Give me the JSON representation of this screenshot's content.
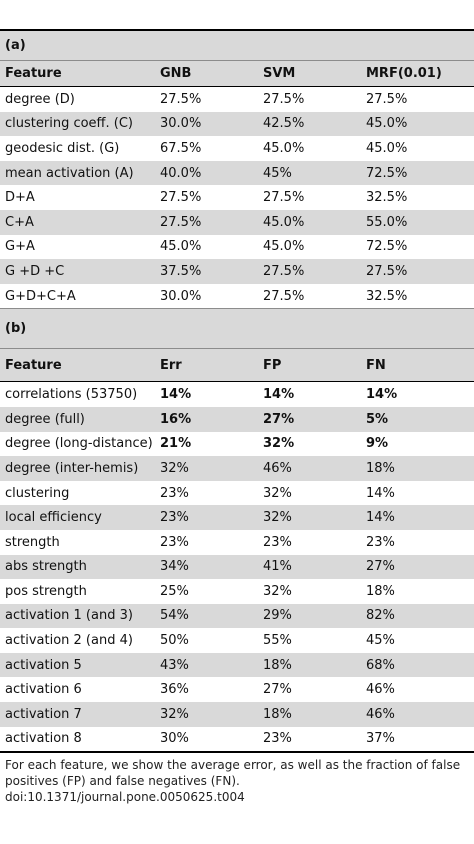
{
  "section_a": {
    "label": "(a)",
    "headers": [
      "Feature",
      "GNB",
      "SVM",
      "MRF(0.01)"
    ],
    "rows": [
      [
        "degree (D)",
        "27.5%",
        "27.5%",
        "27.5%"
      ],
      [
        "clustering coeff. (C)",
        "30.0%",
        "42.5%",
        "45.0%"
      ],
      [
        "geodesic dist. (G)",
        "67.5%",
        "45.0%",
        "45.0%"
      ],
      [
        "mean activation (A)",
        "40.0%",
        "45%",
        "72.5%"
      ],
      [
        "D+A",
        "27.5%",
        "27.5%",
        "32.5%"
      ],
      [
        "C+A",
        "27.5%",
        "45.0%",
        "55.0%"
      ],
      [
        "G+A",
        "45.0%",
        "45.0%",
        "72.5%"
      ],
      [
        "G +D +C",
        "37.5%",
        "27.5%",
        "27.5%"
      ],
      [
        "G+D+C+A",
        "30.0%",
        "27.5%",
        "32.5%"
      ]
    ]
  },
  "section_b": {
    "label": "(b)",
    "headers": [
      "Feature",
      "Err",
      "FP",
      "FN"
    ],
    "rows": [
      [
        "correlations (53750)",
        "14%",
        "14%",
        "14%"
      ],
      [
        "degree (full)",
        "16%",
        "27%",
        "5%"
      ],
      [
        "degree (long-distance)",
        "21%",
        "32%",
        "9%"
      ],
      [
        "degree (inter-hemis)",
        "32%",
        "46%",
        "18%"
      ],
      [
        "clustering",
        "23%",
        "32%",
        "14%"
      ],
      [
        "local efficiency",
        "23%",
        "32%",
        "14%"
      ],
      [
        "strength",
        "23%",
        "23%",
        "23%"
      ],
      [
        "abs strength",
        "34%",
        "41%",
        "27%"
      ],
      [
        "pos strength",
        "25%",
        "32%",
        "18%"
      ],
      [
        "activation 1 (and 3)",
        "54%",
        "29%",
        "82%"
      ],
      [
        "activation 2 (and 4)",
        "50%",
        "55%",
        "45%"
      ],
      [
        "activation 5",
        "43%",
        "18%",
        "68%"
      ],
      [
        "activation 6",
        "36%",
        "27%",
        "46%"
      ],
      [
        "activation 7",
        "32%",
        "18%",
        "46%"
      ],
      [
        "activation 8",
        "30%",
        "23%",
        "37%"
      ]
    ]
  },
  "footnote": "For each feature, we show the average error, as well as the fraction of false positives (FP) and false negatives (FN).",
  "doi": "doi:10.1371/journal.pone.0050625.t004"
}
